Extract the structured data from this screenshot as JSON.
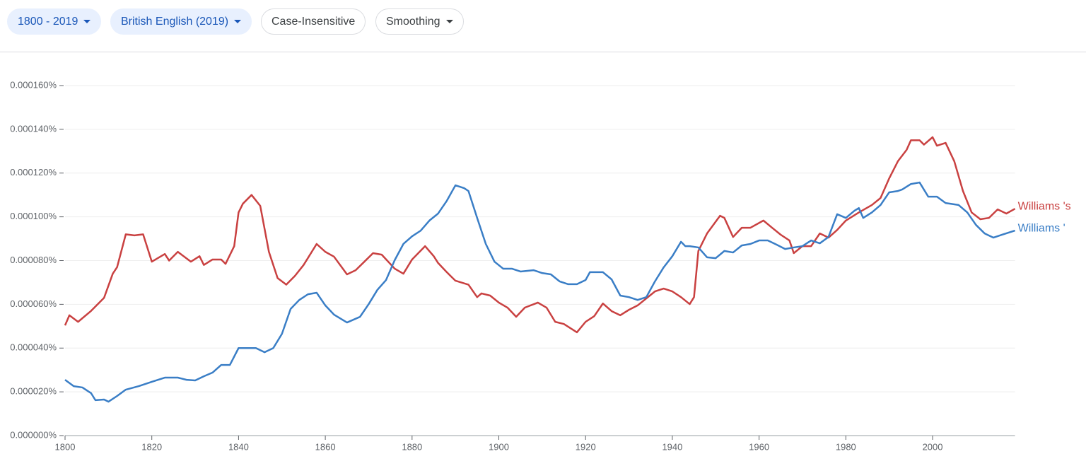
{
  "controls": [
    {
      "label": "1800 - 2019",
      "dropdown": true,
      "selected": true
    },
    {
      "label": "British English (2019)",
      "dropdown": true,
      "selected": true
    },
    {
      "label": "Case-Insensitive",
      "dropdown": false,
      "selected": false
    },
    {
      "label": "Smoothing",
      "dropdown": true,
      "selected": false
    }
  ],
  "chart_data": {
    "type": "line",
    "xlim": [
      1800,
      2019
    ],
    "xticks": [
      1800,
      1820,
      1840,
      1860,
      1880,
      1900,
      1920,
      1940,
      1960,
      1980,
      2000
    ],
    "ylim": [
      0,
      0.00016
    ],
    "yticks": [
      {
        "value": 0,
        "label": "0.000000%"
      },
      {
        "value": 2e-05,
        "label": "0.000020%"
      },
      {
        "value": 4e-05,
        "label": "0.000040%"
      },
      {
        "value": 6e-05,
        "label": "0.000060%"
      },
      {
        "value": 8e-05,
        "label": "0.000080%"
      },
      {
        "value": 0.0001,
        "label": "0.000100%"
      },
      {
        "value": 0.00012,
        "label": "0.000120%"
      },
      {
        "value": 0.00014,
        "label": "0.000140%"
      },
      {
        "value": 0.00016,
        "label": "0.000160%"
      }
    ],
    "grid": true,
    "series": [
      {
        "name": "Williams 's",
        "color": "#c94141",
        "x": [
          1800,
          1801,
          1803,
          1806,
          1809,
          1811,
          1812,
          1814,
          1816,
          1818,
          1820,
          1823,
          1824,
          1826,
          1829,
          1831,
          1832,
          1834,
          1836,
          1837,
          1839,
          1840,
          1841,
          1843,
          1845,
          1847,
          1849,
          1851,
          1853,
          1855,
          1858,
          1860,
          1862,
          1865,
          1867,
          1869,
          1871,
          1873,
          1876,
          1878,
          1880,
          1883,
          1885,
          1886,
          1888,
          1890,
          1893,
          1895,
          1896,
          1898,
          1900,
          1902,
          1904,
          1906,
          1909,
          1911,
          1913,
          1915,
          1918,
          1920,
          1922,
          1924,
          1926,
          1928,
          1930,
          1932,
          1934,
          1936,
          1938,
          1940,
          1942,
          1944,
          1945,
          1946,
          1948,
          1951,
          1952,
          1954,
          1956,
          1958,
          1961,
          1963,
          1965,
          1967,
          1968,
          1970,
          1972,
          1974,
          1976,
          1978,
          1980,
          1983,
          1986,
          1988,
          1990,
          1992,
          1994,
          1995,
          1997,
          1998,
          2000,
          2001,
          2003,
          2005,
          2007,
          2009,
          2011,
          2013,
          2015,
          2017,
          2019
        ],
        "values": [
          5.04e-05,
          5.5e-05,
          5.2e-05,
          5.7e-05,
          6.3e-05,
          7.4e-05,
          7.7e-05,
          9.2e-05,
          9.15e-05,
          9.2e-05,
          7.95e-05,
          8.3e-05,
          8e-05,
          8.4e-05,
          7.95e-05,
          8.2e-05,
          7.8e-05,
          8.05e-05,
          8.05e-05,
          7.85e-05,
          8.66e-05,
          0.000102,
          0.000106,
          0.00011,
          0.000105,
          8.4e-05,
          7.2e-05,
          6.9e-05,
          7.3e-05,
          7.8e-05,
          8.76e-05,
          8.4e-05,
          8.18e-05,
          7.37e-05,
          7.56e-05,
          7.95e-05,
          8.34e-05,
          8.27e-05,
          7.63e-05,
          7.4e-05,
          8.05e-05,
          8.66e-05,
          8.2e-05,
          7.89e-05,
          7.47e-05,
          7.08e-05,
          6.9e-05,
          6.33e-05,
          6.5e-05,
          6.4e-05,
          6.08e-05,
          5.85e-05,
          5.43e-05,
          5.85e-05,
          6.08e-05,
          5.85e-05,
          5.2e-05,
          5.1e-05,
          4.72e-05,
          5.2e-05,
          5.46e-05,
          6.04e-05,
          5.69e-05,
          5.5e-05,
          5.75e-05,
          5.95e-05,
          6.27e-05,
          6.59e-05,
          6.72e-05,
          6.59e-05,
          6.33e-05,
          6.01e-05,
          6.33e-05,
          8.44e-05,
          9.24e-05,
          0.0001005,
          9.95e-05,
          9.08e-05,
          9.5e-05,
          9.5e-05,
          9.83e-05,
          9.5e-05,
          9.18e-05,
          8.92e-05,
          8.34e-05,
          8.66e-05,
          8.66e-05,
          9.24e-05,
          9.05e-05,
          9.4e-05,
          9.83e-05,
          0.000102,
          0.0001054,
          0.0001086,
          0.0001176,
          0.0001254,
          0.0001306,
          0.000135,
          0.000135,
          0.000133,
          0.0001364,
          0.0001325,
          0.0001338,
          0.0001254,
          0.0001118,
          0.000102,
          9.89e-05,
          9.95e-05,
          0.0001034,
          0.0001015,
          0.0001037
        ]
      },
      {
        "name": "Williams '",
        "color": "#3a7ec6",
        "x": [
          1800,
          1802,
          1804,
          1806,
          1807,
          1809,
          1810,
          1812,
          1814,
          1817,
          1820,
          1823,
          1826,
          1828,
          1830,
          1832,
          1834,
          1836,
          1838,
          1840,
          1842,
          1844,
          1846,
          1848,
          1850,
          1852,
          1854,
          1856,
          1858,
          1860,
          1862,
          1865,
          1868,
          1870,
          1872,
          1874,
          1876,
          1878,
          1880,
          1882,
          1884,
          1886,
          1888,
          1890,
          1892,
          1893,
          1895,
          1897,
          1899,
          1901,
          1903,
          1905,
          1908,
          1910,
          1912,
          1914,
          1916,
          1918,
          1920,
          1921,
          1924,
          1926,
          1928,
          1930,
          1932,
          1934,
          1936,
          1938,
          1940,
          1942,
          1943,
          1944,
          1946,
          1948,
          1950,
          1952,
          1954,
          1956,
          1958,
          1960,
          1962,
          1964,
          1966,
          1968,
          1970,
          1972,
          1974,
          1976,
          1978,
          1980,
          1982,
          1983,
          1984,
          1986,
          1988,
          1990,
          1992,
          1993,
          1995,
          1997,
          1999,
          2001,
          2003,
          2006,
          2008,
          2010,
          2012,
          2014,
          2016,
          2019
        ],
        "values": [
          2.55e-05,
          2.26e-05,
          2.2e-05,
          1.94e-05,
          1.62e-05,
          1.65e-05,
          1.55e-05,
          1.81e-05,
          2.1e-05,
          2.26e-05,
          2.46e-05,
          2.65e-05,
          2.65e-05,
          2.55e-05,
          2.52e-05,
          2.71e-05,
          2.88e-05,
          3.23e-05,
          3.23e-05,
          4e-05,
          4e-05,
          4e-05,
          3.81e-05,
          4e-05,
          4.65e-05,
          5.79e-05,
          6.2e-05,
          6.46e-05,
          6.53e-05,
          5.95e-05,
          5.53e-05,
          5.17e-05,
          5.43e-05,
          6.01e-05,
          6.66e-05,
          7.11e-05,
          8.02e-05,
          8.76e-05,
          9.11e-05,
          9.37e-05,
          9.83e-05,
          0.0001015,
          0.0001073,
          0.0001144,
          0.0001131,
          0.0001118,
          9.95e-05,
          8.76e-05,
          7.95e-05,
          7.63e-05,
          7.63e-05,
          7.5e-05,
          7.56e-05,
          7.43e-05,
          7.37e-05,
          7.05e-05,
          6.92e-05,
          6.92e-05,
          7.11e-05,
          7.47e-05,
          7.47e-05,
          7.14e-05,
          6.4e-05,
          6.33e-05,
          6.2e-05,
          6.33e-05,
          7.05e-05,
          7.69e-05,
          8.2e-05,
          8.86e-05,
          8.66e-05,
          8.66e-05,
          8.6e-05,
          8.15e-05,
          8.11e-05,
          8.44e-05,
          8.37e-05,
          8.69e-05,
          8.76e-05,
          8.92e-05,
          8.92e-05,
          8.73e-05,
          8.53e-05,
          8.6e-05,
          8.66e-05,
          8.92e-05,
          8.79e-05,
          9.08e-05,
          0.0001012,
          9.95e-05,
          0.0001028,
          0.000104,
          9.95e-05,
          0.000102,
          0.0001054,
          0.0001112,
          0.0001118,
          0.0001125,
          0.000115,
          0.0001157,
          0.0001092,
          0.0001092,
          0.0001063,
          0.0001054,
          0.000102,
          9.63e-05,
          9.24e-05,
          9.05e-05,
          9.18e-05,
          9.37e-05
        ]
      }
    ]
  }
}
